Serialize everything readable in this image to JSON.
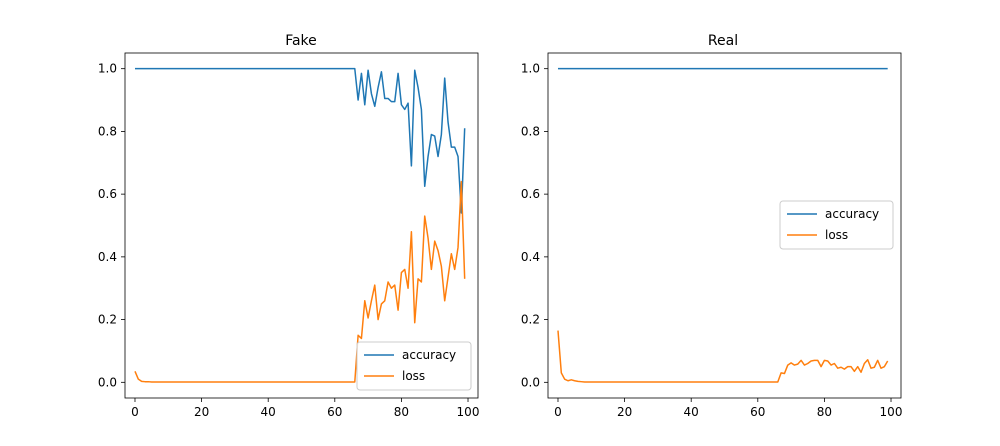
{
  "colors": {
    "accuracy": "#1f77b4",
    "loss": "#ff7f0e"
  },
  "chart_data": [
    {
      "type": "line",
      "title": "Fake",
      "xlim": [
        -3,
        103
      ],
      "ylim": [
        -0.05,
        1.05
      ],
      "x_ticks": [
        0,
        20,
        40,
        60,
        80,
        100
      ],
      "x_tick_labels": [
        "0",
        "20",
        "40",
        "60",
        "80",
        "100"
      ],
      "y_ticks": [
        0.0,
        0.2,
        0.4,
        0.6,
        0.8,
        1.0
      ],
      "y_tick_labels": [
        "0.0",
        "0.2",
        "0.4",
        "0.6",
        "0.8",
        "1.0"
      ],
      "legend": {
        "position": "lower-right",
        "entries": [
          "accuracy",
          "loss"
        ]
      },
      "x": [
        0,
        1,
        2,
        3,
        4,
        5,
        6,
        7,
        8,
        9,
        10,
        11,
        12,
        13,
        14,
        15,
        16,
        17,
        18,
        19,
        20,
        21,
        22,
        23,
        24,
        25,
        26,
        27,
        28,
        29,
        30,
        31,
        32,
        33,
        34,
        35,
        36,
        37,
        38,
        39,
        40,
        41,
        42,
        43,
        44,
        45,
        46,
        47,
        48,
        49,
        50,
        51,
        52,
        53,
        54,
        55,
        56,
        57,
        58,
        59,
        60,
        61,
        62,
        63,
        64,
        65,
        66,
        67,
        68,
        69,
        70,
        71,
        72,
        73,
        74,
        75,
        76,
        77,
        78,
        79,
        80,
        81,
        82,
        83,
        84,
        85,
        86,
        87,
        88,
        89,
        90,
        91,
        92,
        93,
        94,
        95,
        96,
        97,
        98,
        99
      ],
      "series": [
        {
          "name": "accuracy",
          "values": [
            1,
            1,
            1,
            1,
            1,
            1,
            1,
            1,
            1,
            1,
            1,
            1,
            1,
            1,
            1,
            1,
            1,
            1,
            1,
            1,
            1,
            1,
            1,
            1,
            1,
            1,
            1,
            1,
            1,
            1,
            1,
            1,
            1,
            1,
            1,
            1,
            1,
            1,
            1,
            1,
            1,
            1,
            1,
            1,
            1,
            1,
            1,
            1,
            1,
            1,
            1,
            1,
            1,
            1,
            1,
            1,
            1,
            1,
            1,
            1,
            1,
            1,
            1,
            1,
            1,
            1,
            1,
            0.9,
            0.985,
            0.885,
            0.995,
            0.92,
            0.88,
            0.94,
            0.99,
            0.905,
            0.905,
            0.895,
            0.895,
            0.985,
            0.885,
            0.87,
            0.89,
            0.69,
            0.995,
            0.94,
            0.87,
            0.625,
            0.72,
            0.79,
            0.785,
            0.72,
            0.79,
            0.97,
            0.83,
            0.75,
            0.75,
            0.72,
            0.54,
            0.81
          ]
        },
        {
          "name": "loss",
          "values": [
            0.035,
            0.01,
            0.003,
            0.002,
            0.002,
            0.001,
            0.001,
            0.001,
            0.001,
            0.001,
            0.001,
            0.001,
            0.001,
            0.001,
            0.001,
            0.001,
            0.001,
            0.001,
            0.001,
            0.001,
            0.001,
            0.001,
            0.001,
            0.001,
            0.001,
            0.001,
            0.001,
            0.001,
            0.001,
            0.001,
            0.001,
            0.001,
            0.001,
            0.001,
            0.001,
            0.001,
            0.001,
            0.001,
            0.001,
            0.001,
            0.001,
            0.001,
            0.001,
            0.001,
            0.001,
            0.001,
            0.001,
            0.001,
            0.001,
            0.001,
            0.001,
            0.001,
            0.001,
            0.001,
            0.001,
            0.001,
            0.001,
            0.001,
            0.001,
            0.001,
            0.001,
            0.001,
            0.001,
            0.001,
            0.001,
            0.001,
            0.001,
            0.15,
            0.14,
            0.26,
            0.205,
            0.26,
            0.31,
            0.2,
            0.25,
            0.26,
            0.32,
            0.3,
            0.31,
            0.23,
            0.35,
            0.36,
            0.3,
            0.48,
            0.19,
            0.33,
            0.32,
            0.53,
            0.46,
            0.36,
            0.45,
            0.42,
            0.37,
            0.26,
            0.335,
            0.41,
            0.36,
            0.43,
            0.64,
            0.33
          ]
        }
      ]
    },
    {
      "type": "line",
      "title": "Real",
      "xlim": [
        -3,
        103
      ],
      "ylim": [
        -0.05,
        1.05
      ],
      "x_ticks": [
        0,
        20,
        40,
        60,
        80,
        100
      ],
      "x_tick_labels": [
        "0",
        "20",
        "40",
        "60",
        "80",
        "100"
      ],
      "y_ticks": [
        0.0,
        0.2,
        0.4,
        0.6,
        0.8,
        1.0
      ],
      "y_tick_labels": [
        "0.0",
        "0.2",
        "0.4",
        "0.6",
        "0.8",
        "1.0"
      ],
      "legend": {
        "position": "center-right",
        "entries": [
          "accuracy",
          "loss"
        ]
      },
      "x": [
        0,
        1,
        2,
        3,
        4,
        5,
        6,
        7,
        8,
        9,
        10,
        11,
        12,
        13,
        14,
        15,
        16,
        17,
        18,
        19,
        20,
        21,
        22,
        23,
        24,
        25,
        26,
        27,
        28,
        29,
        30,
        31,
        32,
        33,
        34,
        35,
        36,
        37,
        38,
        39,
        40,
        41,
        42,
        43,
        44,
        45,
        46,
        47,
        48,
        49,
        50,
        51,
        52,
        53,
        54,
        55,
        56,
        57,
        58,
        59,
        60,
        61,
        62,
        63,
        64,
        65,
        66,
        67,
        68,
        69,
        70,
        71,
        72,
        73,
        74,
        75,
        76,
        77,
        78,
        79,
        80,
        81,
        82,
        83,
        84,
        85,
        86,
        87,
        88,
        89,
        90,
        91,
        92,
        93,
        94,
        95,
        96,
        97,
        98,
        99
      ],
      "series": [
        {
          "name": "accuracy",
          "values": [
            1,
            1,
            1,
            1,
            1,
            1,
            1,
            1,
            1,
            1,
            1,
            1,
            1,
            1,
            1,
            1,
            1,
            1,
            1,
            1,
            1,
            1,
            1,
            1,
            1,
            1,
            1,
            1,
            1,
            1,
            1,
            1,
            1,
            1,
            1,
            1,
            1,
            1,
            1,
            1,
            1,
            1,
            1,
            1,
            1,
            1,
            1,
            1,
            1,
            1,
            1,
            1,
            1,
            1,
            1,
            1,
            1,
            1,
            1,
            1,
            1,
            1,
            1,
            1,
            1,
            1,
            1,
            1,
            1,
            1,
            1,
            1,
            1,
            1,
            1,
            1,
            1,
            1,
            1,
            1,
            1,
            1,
            1,
            1,
            1,
            1,
            1,
            1,
            1,
            1,
            1,
            1,
            1,
            1,
            1,
            1,
            1,
            1,
            1,
            1
          ]
        },
        {
          "name": "loss",
          "values": [
            0.165,
            0.03,
            0.01,
            0.005,
            0.008,
            0.005,
            0.003,
            0.002,
            0.001,
            0.001,
            0.001,
            0.001,
            0.001,
            0.001,
            0.001,
            0.001,
            0.001,
            0.001,
            0.001,
            0.001,
            0.001,
            0.001,
            0.001,
            0.001,
            0.001,
            0.001,
            0.001,
            0.001,
            0.001,
            0.001,
            0.001,
            0.001,
            0.001,
            0.001,
            0.001,
            0.001,
            0.001,
            0.001,
            0.001,
            0.001,
            0.001,
            0.001,
            0.001,
            0.001,
            0.001,
            0.001,
            0.001,
            0.001,
            0.001,
            0.001,
            0.001,
            0.001,
            0.001,
            0.001,
            0.001,
            0.001,
            0.001,
            0.001,
            0.001,
            0.001,
            0.001,
            0.001,
            0.001,
            0.001,
            0.001,
            0.001,
            0.001,
            0.03,
            0.028,
            0.055,
            0.062,
            0.055,
            0.058,
            0.07,
            0.055,
            0.06,
            0.068,
            0.07,
            0.07,
            0.05,
            0.07,
            0.068,
            0.055,
            0.06,
            0.045,
            0.048,
            0.042,
            0.05,
            0.05,
            0.035,
            0.05,
            0.032,
            0.06,
            0.072,
            0.045,
            0.048,
            0.07,
            0.045,
            0.05,
            0.068
          ]
        }
      ]
    }
  ]
}
